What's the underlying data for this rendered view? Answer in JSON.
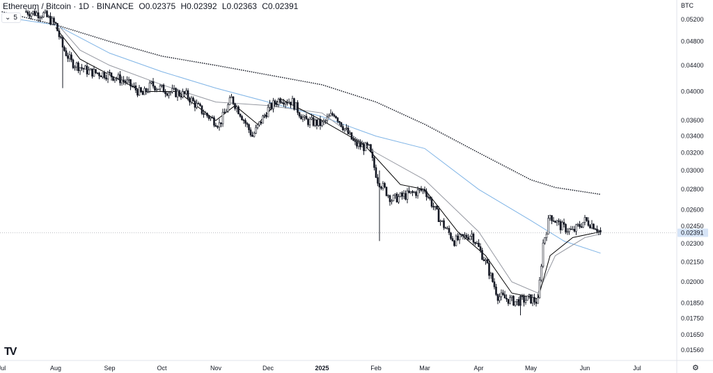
{
  "header": {
    "symbol": "Ethereum / Bitcoin · 1D · BINANCE",
    "open": "O0.02375",
    "high": "H0.02392",
    "low": "L0.02363",
    "close": "C0.02391"
  },
  "indicator_chip": {
    "collapse_icon": "chevron-down-icon",
    "count": "5",
    "settings_icon": "gear-icon"
  },
  "currency": "BTC",
  "logo_text": "TV",
  "settings_icon": "gear-icon",
  "colors": {
    "candle": "#131722",
    "ma_fast": "#000000",
    "ma_mid": "#9598a1",
    "ma_slow": "#7fb4e6",
    "ma_long": "#131722",
    "last_price_bg": "#d6e4f7",
    "grid": "#f0f3fa"
  },
  "chart_data": {
    "type": "candlestick",
    "title": "Ethereum / Bitcoin · 1D · BINANCE",
    "scale": "log",
    "y_ticks": [
      "0.05200",
      "0.04800",
      "0.04400",
      "0.04000",
      "0.03600",
      "0.03400",
      "0.03200",
      "0.03000",
      "0.02800",
      "0.02600",
      "0.02450",
      "0.02300",
      "0.02150",
      "0.02000",
      "0.01850",
      "0.01750",
      "0.01650",
      "0.01560"
    ],
    "y_tick_values": [
      0.052,
      0.048,
      0.044,
      0.04,
      0.036,
      0.034,
      0.032,
      0.03,
      0.028,
      0.026,
      0.0245,
      0.023,
      0.0215,
      0.02,
      0.0185,
      0.0175,
      0.0165,
      0.0156
    ],
    "x_ticks": [
      "Jul",
      "Aug",
      "Sep",
      "Oct",
      "Nov",
      "Dec",
      "2025",
      "Feb",
      "Mar",
      "Apr",
      "May",
      "Jun",
      "Jul"
    ],
    "x_tick_dates": [
      "2024-07-01",
      "2024-08-01",
      "2024-09-01",
      "2024-10-01",
      "2024-11-01",
      "2024-12-01",
      "2025-01-01",
      "2025-02-01",
      "2025-03-01",
      "2025-04-01",
      "2025-05-01",
      "2025-06-01",
      "2025-07-01"
    ],
    "last_price": "0.02391",
    "last_price_value": 0.02391,
    "price_path": [
      [
        "2024-07-15",
        0.0535
      ],
      [
        "2024-07-25",
        0.053
      ],
      [
        "2024-08-01",
        0.051
      ],
      [
        "2024-08-05",
        0.047
      ],
      [
        "2024-08-10",
        0.0445
      ],
      [
        "2024-08-20",
        0.043
      ],
      [
        "2024-09-01",
        0.0425
      ],
      [
        "2024-09-10",
        0.0415
      ],
      [
        "2024-09-20",
        0.0395
      ],
      [
        "2024-09-25",
        0.041
      ],
      [
        "2024-10-05",
        0.04
      ],
      [
        "2024-10-15",
        0.0395
      ],
      [
        "2024-10-25",
        0.037
      ],
      [
        "2024-11-03",
        0.0355
      ],
      [
        "2024-11-10",
        0.039
      ],
      [
        "2024-11-15",
        0.037
      ],
      [
        "2024-11-22",
        0.034
      ],
      [
        "2024-12-01",
        0.0375
      ],
      [
        "2024-12-08",
        0.039
      ],
      [
        "2024-12-15",
        0.0385
      ],
      [
        "2024-12-22",
        0.036
      ],
      [
        "2025-01-01",
        0.0355
      ],
      [
        "2025-01-08",
        0.037
      ],
      [
        "2025-01-20",
        0.033
      ],
      [
        "2025-01-28",
        0.0325
      ],
      [
        "2025-02-02",
        0.029
      ],
      [
        "2025-02-10",
        0.027
      ],
      [
        "2025-02-20",
        0.0275
      ],
      [
        "2025-03-01",
        0.028
      ],
      [
        "2025-03-10",
        0.025
      ],
      [
        "2025-03-18",
        0.0232
      ],
      [
        "2025-03-28",
        0.0238
      ],
      [
        "2025-04-05",
        0.0215
      ],
      [
        "2025-04-12",
        0.019
      ],
      [
        "2025-04-22",
        0.0186
      ],
      [
        "2025-04-30",
        0.0188
      ],
      [
        "2025-05-05",
        0.0186
      ],
      [
        "2025-05-08",
        0.023
      ],
      [
        "2025-05-12",
        0.0255
      ],
      [
        "2025-05-18",
        0.0245
      ],
      [
        "2025-05-25",
        0.024
      ],
      [
        "2025-06-01",
        0.025
      ],
      [
        "2025-06-07",
        0.0245
      ],
      [
        "2025-06-10",
        0.02391
      ]
    ],
    "ma_long_path": [
      [
        "2024-07-01",
        0.0535
      ],
      [
        "2024-08-01",
        0.051
      ],
      [
        "2024-09-01",
        0.048
      ],
      [
        "2024-10-01",
        0.0455
      ],
      [
        "2024-11-01",
        0.044
      ],
      [
        "2024-12-01",
        0.0425
      ],
      [
        "2025-01-01",
        0.041
      ],
      [
        "2025-02-01",
        0.0385
      ],
      [
        "2025-03-01",
        0.0355
      ],
      [
        "2025-04-01",
        0.032
      ],
      [
        "2025-05-01",
        0.029
      ],
      [
        "2025-05-15",
        0.0282
      ],
      [
        "2025-06-10",
        0.0275
      ]
    ],
    "ma_slow_path": [
      [
        "2024-07-01",
        0.0525
      ],
      [
        "2024-08-01",
        0.051
      ],
      [
        "2024-09-01",
        0.046
      ],
      [
        "2024-10-01",
        0.043
      ],
      [
        "2024-11-01",
        0.0405
      ],
      [
        "2024-12-01",
        0.0385
      ],
      [
        "2025-01-01",
        0.0365
      ],
      [
        "2025-02-01",
        0.034
      ],
      [
        "2025-03-01",
        0.0325
      ],
      [
        "2025-04-01",
        0.028
      ],
      [
        "2025-05-01",
        0.025
      ],
      [
        "2025-05-20",
        0.0232
      ],
      [
        "2025-06-10",
        0.0222
      ]
    ],
    "ma_mid_path": [
      [
        "2024-08-01",
        0.0515
      ],
      [
        "2024-08-15",
        0.0465
      ],
      [
        "2024-09-01",
        0.044
      ],
      [
        "2024-10-01",
        0.041
      ],
      [
        "2024-11-01",
        0.0385
      ],
      [
        "2024-12-01",
        0.038
      ],
      [
        "2025-01-01",
        0.037
      ],
      [
        "2025-02-01",
        0.032
      ],
      [
        "2025-03-01",
        0.029
      ],
      [
        "2025-04-01",
        0.024
      ],
      [
        "2025-04-20",
        0.02
      ],
      [
        "2025-05-05",
        0.0192
      ],
      [
        "2025-05-15",
        0.022
      ],
      [
        "2025-06-01",
        0.0235
      ],
      [
        "2025-06-10",
        0.0238
      ]
    ],
    "ma_fast_path": [
      [
        "2024-08-01",
        0.0505
      ],
      [
        "2024-08-15",
        0.045
      ],
      [
        "2024-09-01",
        0.0425
      ],
      [
        "2024-09-20",
        0.04
      ],
      [
        "2024-10-10",
        0.04
      ],
      [
        "2024-11-01",
        0.036
      ],
      [
        "2024-11-12",
        0.038
      ],
      [
        "2024-11-25",
        0.0355
      ],
      [
        "2024-12-08",
        0.039
      ],
      [
        "2025-01-01",
        0.036
      ],
      [
        "2025-01-25",
        0.033
      ],
      [
        "2025-02-15",
        0.0285
      ],
      [
        "2025-03-01",
        0.028
      ],
      [
        "2025-03-20",
        0.024
      ],
      [
        "2025-04-05",
        0.022
      ],
      [
        "2025-04-20",
        0.0192
      ],
      [
        "2025-05-05",
        0.0188
      ],
      [
        "2025-05-12",
        0.022
      ],
      [
        "2025-05-25",
        0.0235
      ],
      [
        "2025-06-10",
        0.024
      ]
    ]
  }
}
